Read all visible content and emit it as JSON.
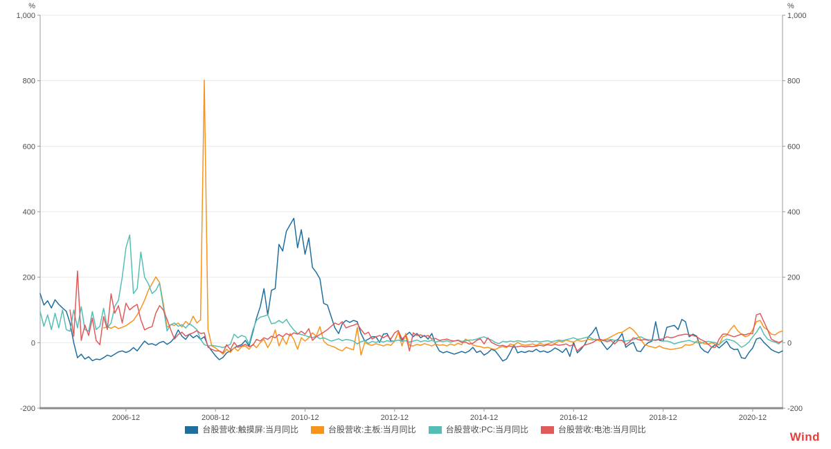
{
  "wind_logo": {
    "text": "Wind",
    "color": "#e2403d"
  },
  "chart_data": {
    "type": "line",
    "title": "",
    "grid": true,
    "legend_position": "bottom",
    "background": "#ffffff",
    "axis_color": "#999999",
    "bottom_axis_color": "#8c8c8c",
    "gridline_color": "#e9e9e9",
    "y_axis": {
      "unit": "%",
      "min": -200,
      "max": 1000,
      "tick_step": 200,
      "tick_values": [
        1000,
        800,
        600,
        400,
        200,
        0,
        -200
      ],
      "tick_labels": [
        "1,000",
        "800",
        "600",
        "400",
        "200",
        "0",
        "-200"
      ],
      "mirrored_right": true
    },
    "x_axis": {
      "start": "2005-01",
      "end": "2021-08",
      "frequency": "monthly",
      "point_count": 200,
      "tick_labels": [
        "2006-12",
        "2008-12",
        "2010-12",
        "2012-12",
        "2014-12",
        "2016-12",
        "2018-12",
        "2020-12"
      ],
      "tick_indices": [
        23,
        47,
        71,
        95,
        119,
        143,
        167,
        191
      ]
    },
    "series": [
      {
        "key": "touchscreen",
        "name": "台股营收:触摸屏:当月同比",
        "color": "#1e6ea0",
        "values": [
          150,
          115,
          128,
          106,
          131,
          117,
          106,
          96,
          60,
          0,
          -46,
          -35,
          -50,
          -43,
          -55,
          -50,
          -52,
          -46,
          -38,
          -42,
          -35,
          -28,
          -25,
          -30,
          -25,
          -15,
          -25,
          -10,
          5,
          -5,
          -3,
          -8,
          0,
          4,
          -5,
          2,
          15,
          39,
          20,
          10,
          26,
          15,
          22,
          10,
          18,
          -10,
          -25,
          -40,
          -52,
          -45,
          -31,
          -25,
          -16,
          -10,
          -6,
          7,
          -10,
          32,
          75,
          110,
          165,
          85,
          160,
          165,
          300,
          280,
          340,
          360,
          380,
          290,
          345,
          270,
          320,
          230,
          215,
          195,
          120,
          115,
          80,
          45,
          28,
          58,
          68,
          62,
          68,
          64,
          28,
          5,
          11,
          18,
          18,
          1,
          26,
          28,
          5,
          5,
          32,
          7,
          22,
          32,
          18,
          28,
          15,
          22,
          11,
          28,
          -4,
          -25,
          -31,
          -27,
          -31,
          -35,
          -31,
          -27,
          -31,
          -25,
          -14,
          -30,
          -25,
          -38,
          -31,
          -20,
          -25,
          -40,
          -56,
          -50,
          -30,
          -6,
          -31,
          -27,
          -30,
          -25,
          -27,
          -20,
          -28,
          -25,
          -30,
          -25,
          -16,
          -22,
          -30,
          -17,
          -42,
          1,
          -31,
          -20,
          -5,
          18,
          30,
          47,
          10,
          -6,
          -21,
          -10,
          5,
          11,
          28,
          -14,
          -5,
          1,
          -25,
          -27,
          -10,
          0,
          5,
          64,
          7,
          5,
          47,
          50,
          53,
          40,
          71,
          64,
          18,
          26,
          20,
          -14,
          -25,
          -31,
          -14,
          -6,
          -16,
          -6,
          5,
          -14,
          -21,
          -20,
          -46,
          -48,
          -30,
          -16,
          11,
          15,
          1,
          -10,
          -21,
          -27,
          -31,
          -25
        ]
      },
      {
        "key": "motherboard",
        "name": "台股营收:主板:当月同比",
        "color": "#f7941d",
        "values": [
          null,
          null,
          null,
          null,
          null,
          null,
          null,
          null,
          null,
          null,
          null,
          null,
          null,
          null,
          null,
          null,
          null,
          45,
          48,
          44,
          50,
          43,
          47,
          52,
          60,
          68,
          85,
          105,
          130,
          160,
          180,
          201,
          184,
          120,
          47,
          55,
          53,
          60,
          48,
          65,
          55,
          81,
          60,
          70,
          802,
          40,
          -10,
          -16,
          -25,
          -35,
          -20,
          -30,
          -15,
          -25,
          -12,
          -10,
          -20,
          -5,
          -15,
          0,
          10,
          -15,
          5,
          39,
          -10,
          15,
          -5,
          28,
          10,
          -20,
          15,
          5,
          15,
          30,
          20,
          49,
          5,
          -6,
          -10,
          -14,
          -21,
          -25,
          -14,
          -18,
          -22,
          47,
          -38,
          1,
          -5,
          -8,
          -3,
          -6,
          -10,
          -5,
          -8,
          5,
          32,
          -10,
          28,
          -8,
          -10,
          -5,
          -8,
          -3,
          -6,
          -10,
          -4,
          -8,
          -6,
          -10,
          -4,
          -8,
          -2,
          -6,
          11,
          5,
          -7,
          -10,
          -12,
          -16,
          -14,
          -18,
          -21,
          -15,
          -12,
          -15,
          -4,
          -8,
          1,
          -5,
          -8,
          -6,
          -4,
          -8,
          -2,
          -6,
          -4,
          0,
          -2,
          5,
          2,
          8,
          4,
          2,
          8,
          4,
          6,
          11,
          8,
          11,
          5,
          8,
          12,
          18,
          24,
          30,
          32,
          39,
          47,
          39,
          25,
          10,
          -6,
          -10,
          -13,
          -16,
          -10,
          -16,
          -18,
          -21,
          -19,
          -17,
          -15,
          -6,
          -8,
          -5,
          5,
          2,
          -3,
          -5,
          0,
          -5,
          -7,
          18,
          22,
          40,
          53,
          36,
          26,
          18,
          22,
          39,
          64,
          68,
          47,
          39,
          26,
          24,
          32,
          36
        ]
      },
      {
        "key": "pc",
        "name": "台股营收:PC:当月同比",
        "color": "#55beb4",
        "values": [
          95,
          50,
          85,
          40,
          90,
          45,
          100,
          40,
          35,
          100,
          45,
          110,
          40,
          35,
          95,
          40,
          50,
          105,
          45,
          60,
          110,
          130,
          200,
          290,
          329,
          150,
          165,
          277,
          200,
          180,
          150,
          160,
          182,
          110,
          36,
          55,
          60,
          50,
          55,
          45,
          58,
          50,
          40,
          10,
          -6,
          -10,
          -8,
          -10,
          -12,
          -15,
          -10,
          -5,
          26,
          15,
          22,
          18,
          -4,
          39,
          68,
          78,
          81,
          85,
          58,
          60,
          68,
          60,
          71,
          53,
          39,
          28,
          25,
          22,
          18,
          15,
          20,
          12,
          15,
          10,
          5,
          8,
          12,
          6,
          10,
          8,
          5,
          -4,
          3,
          6,
          -2,
          4,
          1,
          5,
          2,
          6,
          3,
          5,
          8,
          4,
          6,
          2,
          5,
          8,
          3,
          6,
          4,
          7,
          2,
          5,
          3,
          6,
          2,
          5,
          8,
          4,
          6,
          8,
          8,
          11,
          15,
          18,
          12,
          8,
          1,
          -3,
          4,
          2,
          5,
          3,
          6,
          4,
          2,
          5,
          3,
          5,
          2,
          4,
          6,
          3,
          5,
          8,
          6,
          9,
          12,
          15,
          10,
          12,
          15,
          18,
          12,
          8,
          10,
          6,
          8,
          10,
          7,
          7,
          7,
          5,
          7,
          9,
          15,
          18,
          12,
          9,
          7,
          9,
          11,
          5,
          5,
          2,
          -4,
          0,
          3,
          5,
          7,
          3,
          0,
          -2,
          2,
          4,
          2,
          0,
          -6,
          5,
          11,
          8,
          5,
          -4,
          -14,
          -8,
          2,
          18,
          32,
          50,
          26,
          11,
          5,
          2,
          -4,
          7
        ]
      },
      {
        "key": "battery",
        "name": "台股营收:电池:当月同比",
        "color": "#e05a5a",
        "values": [
          null,
          null,
          null,
          null,
          null,
          null,
          null,
          null,
          100,
          20,
          219,
          7,
          54,
          22,
          75,
          7,
          -6,
          80,
          40,
          149,
          90,
          113,
          60,
          121,
          100,
          110,
          117,
          70,
          39,
          45,
          49,
          90,
          113,
          100,
          71,
          40,
          11,
          25,
          32,
          20,
          26,
          30,
          37,
          28,
          30,
          -14,
          -20,
          -25,
          -25,
          -31,
          -6,
          -21,
          1,
          -14,
          -10,
          -5,
          -12,
          -8,
          10,
          5,
          15,
          10,
          20,
          15,
          25,
          18,
          28,
          22,
          30,
          26,
          35,
          26,
          43,
          7,
          18,
          25,
          32,
          40,
          50,
          60,
          55,
          64,
          45,
          50,
          53,
          58,
          40,
          26,
          32,
          11,
          18,
          22,
          15,
          22,
          11,
          30,
          37,
          11,
          22,
          -25,
          30,
          22,
          24,
          19,
          22,
          11,
          13,
          7,
          9,
          11,
          7,
          5,
          7,
          1,
          2,
          -4,
          -2,
          7,
          12,
          -4,
          15,
          1,
          -5,
          -10,
          -8,
          -12,
          -10,
          -14,
          -12,
          -10,
          -13,
          -11,
          -12,
          -10,
          -8,
          -10,
          -6,
          -8,
          -5,
          -8,
          -6,
          -4,
          -10,
          -6,
          -25,
          -15,
          -7,
          -4,
          0,
          7,
          11,
          7,
          3,
          7,
          -4,
          7,
          7,
          -6,
          2,
          15,
          11,
          7,
          10,
          7,
          9,
          7,
          10,
          12,
          18,
          15,
          17,
          22,
          24,
          26,
          24,
          22,
          18,
          10,
          5,
          -4,
          -14,
          -14,
          11,
          26,
          26,
          22,
          18,
          22,
          26,
          24,
          28,
          28,
          85,
          89,
          64,
          39,
          11,
          5,
          1,
          5
        ]
      }
    ]
  }
}
